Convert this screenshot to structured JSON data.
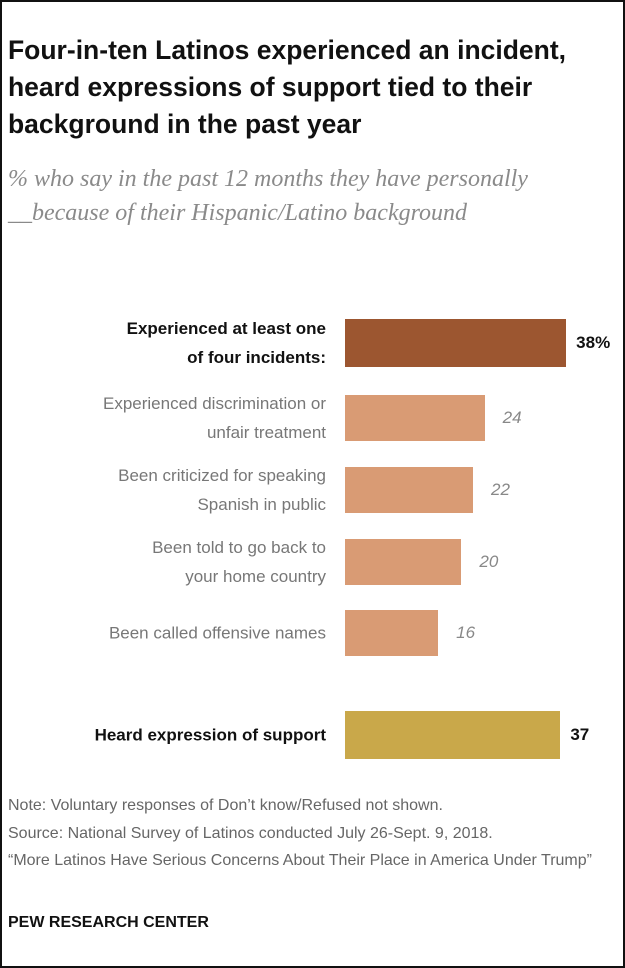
{
  "chart_data": {
    "type": "bar",
    "orientation": "horizontal",
    "title": "Four-in-ten Latinos experienced an incident, heard expressions of support tied to their background in the past year",
    "subtitle": "% who say in the past 12 months they have personally __because of their Hispanic/Latino background",
    "categories": [
      "Experienced at least one\nof four incidents:",
      "Experienced discrimination or\nunfair treatment",
      "Been criticized  for speaking\nSpanish in public",
      "Been told to go back to\nyour home country",
      "Been called offensive names",
      "Heard expression of support"
    ],
    "values": [
      38,
      24,
      22,
      20,
      16,
      37
    ],
    "value_labels": [
      "38%",
      "24",
      "22",
      "20",
      "16",
      "37"
    ],
    "colors": [
      "#9c5630",
      "#d99b74",
      "#d99b74",
      "#d99b74",
      "#d99b74",
      "#c9a84a"
    ],
    "emphasis": [
      true,
      false,
      false,
      false,
      false,
      true
    ],
    "notes": [
      "Note: Voluntary responses of Don’t know/Refused not shown.",
      "Source: National Survey of Latinos conducted July 26-Sept. 9, 2018.",
      "“More Latinos Have Serious Concerns About Their Place in America Under Trump”"
    ],
    "source": "PEW RESEARCH CENTER"
  }
}
